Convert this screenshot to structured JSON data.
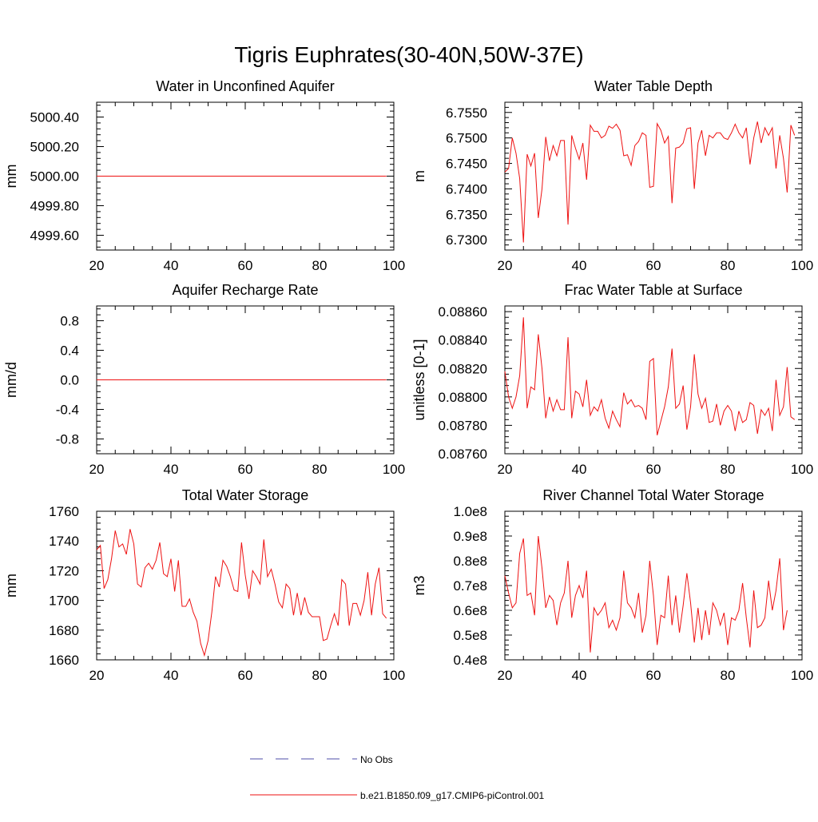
{
  "title": "Tigris Euphrates(30-40N,50W-37E)",
  "legend": {
    "entries": [
      {
        "label": "No Obs",
        "color": "#4c4ca8",
        "style": "dashed"
      },
      {
        "label": "b.e21.B1850.f09_g17.CMIP6-piControl.001",
        "color": "#ee1111",
        "style": "solid"
      }
    ]
  },
  "series_color": "#ee1111",
  "chart_data": [
    {
      "type": "line",
      "title": "Water in Unconfined Aquifer",
      "ylabel": "mm",
      "xlim": [
        20,
        100
      ],
      "ylim": [
        4999.5,
        5000.5
      ],
      "xticks": [
        20,
        40,
        60,
        80,
        100
      ],
      "xtick_labels": [
        "20",
        "40",
        "60",
        "80",
        "100"
      ],
      "yticks": [
        4999.6,
        4999.8,
        5000.0,
        5000.2,
        5000.4
      ],
      "ytick_labels": [
        "4999.60",
        "4999.80",
        "5000.00",
        "5000.20",
        "5000.40"
      ],
      "x_start": 20,
      "values": [
        5000,
        5000,
        5000,
        5000,
        5000,
        5000,
        5000,
        5000,
        5000,
        5000,
        5000,
        5000,
        5000,
        5000,
        5000,
        5000,
        5000,
        5000,
        5000,
        5000,
        5000,
        5000,
        5000,
        5000,
        5000,
        5000,
        5000,
        5000,
        5000,
        5000,
        5000,
        5000,
        5000,
        5000,
        5000,
        5000,
        5000,
        5000,
        5000,
        5000,
        5000,
        5000,
        5000,
        5000,
        5000,
        5000,
        5000,
        5000,
        5000,
        5000,
        5000,
        5000,
        5000,
        5000,
        5000,
        5000,
        5000,
        5000,
        5000,
        5000,
        5000,
        5000,
        5000,
        5000,
        5000,
        5000,
        5000,
        5000,
        5000,
        5000,
        5000,
        5000,
        5000,
        5000,
        5000,
        5000,
        5000,
        5000,
        5000
      ]
    },
    {
      "type": "line",
      "title": "Water Table Depth",
      "ylabel": "m",
      "xlim": [
        20,
        100
      ],
      "ylim": [
        6.728,
        6.757
      ],
      "xticks": [
        20,
        40,
        60,
        80,
        100
      ],
      "xtick_labels": [
        "20",
        "40",
        "60",
        "80",
        "100"
      ],
      "yticks": [
        6.73,
        6.735,
        6.74,
        6.745,
        6.75,
        6.755
      ],
      "ytick_labels": [
        "6.7300",
        "6.7350",
        "6.7400",
        "6.7450",
        "6.7500",
        "6.7550"
      ],
      "x_start": 20,
      "values": [
        6.7433,
        6.744,
        6.75,
        6.747,
        6.742,
        6.7295,
        6.7468,
        6.7445,
        6.747,
        6.7343,
        6.74,
        6.7502,
        6.7455,
        6.7485,
        6.7465,
        6.7495,
        6.7495,
        6.733,
        6.7505,
        6.748,
        6.7458,
        6.749,
        6.7418,
        6.7525,
        6.7513,
        6.7513,
        6.75,
        6.7505,
        6.7523,
        6.7519,
        6.7527,
        6.7515,
        6.7465,
        6.7467,
        6.7446,
        6.7485,
        6.7493,
        6.751,
        6.7505,
        6.7403,
        6.7405,
        6.7528,
        6.7515,
        6.749,
        6.7503,
        6.7372,
        6.748,
        6.7482,
        6.749,
        6.7518,
        6.752,
        6.74,
        6.749,
        6.7515,
        6.7465,
        6.7505,
        6.75,
        6.751,
        6.751,
        6.75,
        6.7497,
        6.751,
        6.7527,
        6.751,
        6.75,
        6.752,
        6.7448,
        6.75,
        6.7532,
        6.749,
        6.752,
        6.7505,
        6.752,
        6.744,
        6.7505,
        6.746,
        6.7393,
        6.7525,
        6.7505
      ]
    },
    {
      "type": "line",
      "title": "Aquifer Recharge Rate",
      "ylabel": "mm/d",
      "xlim": [
        20,
        100
      ],
      "ylim": [
        -1.0,
        1.0
      ],
      "xticks": [
        20,
        40,
        60,
        80,
        100
      ],
      "xtick_labels": [
        "20",
        "40",
        "60",
        "80",
        "100"
      ],
      "yticks": [
        -0.8,
        -0.4,
        0.0,
        0.4,
        0.8
      ],
      "ytick_labels": [
        "-0.8",
        "-0.4",
        "0.0",
        "0.4",
        "0.8"
      ],
      "x_start": 20,
      "values": [
        0,
        0,
        0,
        0,
        0,
        0,
        0,
        0,
        0,
        0,
        0,
        0,
        0,
        0,
        0,
        0,
        0,
        0,
        0,
        0,
        0,
        0,
        0,
        0,
        0,
        0,
        0,
        0,
        0,
        0,
        0,
        0,
        0,
        0,
        0,
        0,
        0,
        0,
        0,
        0,
        0,
        0,
        0,
        0,
        0,
        0,
        0,
        0,
        0,
        0,
        0,
        0,
        0,
        0,
        0,
        0,
        0,
        0,
        0,
        0,
        0,
        0,
        0,
        0,
        0,
        0,
        0,
        0,
        0,
        0,
        0,
        0,
        0,
        0,
        0,
        0,
        0,
        0,
        0
      ]
    },
    {
      "type": "line",
      "title": "Frac Water Table at Surface",
      "ylabel": "unitless [0-1]",
      "xlim": [
        20,
        100
      ],
      "ylim": [
        0.0876,
        0.08864
      ],
      "xticks": [
        20,
        40,
        60,
        80,
        100
      ],
      "xtick_labels": [
        "20",
        "40",
        "60",
        "80",
        "100"
      ],
      "yticks": [
        0.0876,
        0.0878,
        0.088,
        0.0882,
        0.0884,
        0.0886
      ],
      "ytick_labels": [
        "0.08760",
        "0.08780",
        "0.08800",
        "0.08820",
        "0.08840",
        "0.08860"
      ],
      "x_start": 20,
      "values": [
        0.08818,
        0.088,
        0.08792,
        0.088,
        0.08815,
        0.08856,
        0.08792,
        0.08807,
        0.08805,
        0.08844,
        0.0882,
        0.08785,
        0.088,
        0.0879,
        0.08798,
        0.08791,
        0.08791,
        0.08842,
        0.08785,
        0.08804,
        0.08802,
        0.08793,
        0.08812,
        0.08787,
        0.08793,
        0.0879,
        0.08798,
        0.08785,
        0.08778,
        0.0879,
        0.08784,
        0.08779,
        0.08803,
        0.08795,
        0.08798,
        0.08793,
        0.08794,
        0.08792,
        0.08784,
        0.08825,
        0.08827,
        0.08773,
        0.08783,
        0.08793,
        0.08807,
        0.08834,
        0.08792,
        0.08795,
        0.08808,
        0.08777,
        0.08793,
        0.0883,
        0.08802,
        0.08792,
        0.08799,
        0.08782,
        0.08783,
        0.08795,
        0.0878,
        0.0879,
        0.08794,
        0.0879,
        0.08776,
        0.0879,
        0.08782,
        0.08784,
        0.08796,
        0.08794,
        0.08774,
        0.08791,
        0.08787,
        0.08792,
        0.08776,
        0.08812,
        0.08787,
        0.08793,
        0.08821,
        0.08786,
        0.08784
      ]
    },
    {
      "type": "line",
      "title": "Total Water Storage",
      "ylabel": "mm",
      "xlim": [
        20,
        100
      ],
      "ylim": [
        1660,
        1760
      ],
      "xticks": [
        20,
        40,
        60,
        80,
        100
      ],
      "xtick_labels": [
        "20",
        "40",
        "60",
        "80",
        "100"
      ],
      "yticks": [
        1660,
        1680,
        1700,
        1720,
        1740,
        1760
      ],
      "ytick_labels": [
        "1660",
        "1680",
        "1700",
        "1720",
        "1740",
        "1760"
      ],
      "x_start": 20,
      "values": [
        1734,
        1737,
        1708,
        1714,
        1728,
        1747,
        1736,
        1738,
        1731,
        1748,
        1738,
        1711,
        1709,
        1722,
        1725,
        1721,
        1727,
        1739,
        1718,
        1716,
        1728,
        1706,
        1727,
        1696,
        1696,
        1701,
        1692,
        1686,
        1671,
        1663,
        1673,
        1692,
        1716,
        1709,
        1727,
        1723,
        1716,
        1707,
        1706,
        1739,
        1717,
        1701,
        1720,
        1716,
        1711,
        1741,
        1716,
        1721,
        1711,
        1699,
        1695,
        1711,
        1708,
        1690,
        1705,
        1690,
        1702,
        1692,
        1689,
        1689,
        1689,
        1673,
        1674,
        1683,
        1691,
        1683,
        1714,
        1711,
        1683,
        1698,
        1698,
        1690,
        1700,
        1719,
        1690,
        1711,
        1722,
        1691,
        1688
      ]
    },
    {
      "type": "line",
      "title": "River Channel Total Water Storage",
      "ylabel": "m3",
      "xlim": [
        20,
        100
      ],
      "ylim": [
        40000000,
        100000000
      ],
      "xticks": [
        20,
        40,
        60,
        80,
        100
      ],
      "xtick_labels": [
        "20",
        "40",
        "60",
        "80",
        "100"
      ],
      "yticks": [
        40000000,
        50000000,
        60000000,
        70000000,
        80000000,
        90000000,
        100000000
      ],
      "ytick_labels": [
        "0.4e8",
        "0.5e8",
        "0.6e8",
        "0.7e8",
        "0.8e8",
        "0.9e8",
        "1.0e8"
      ],
      "x_start": 20,
      "values": [
        74000000,
        67000000,
        61000000,
        63000000,
        83000000,
        89000000,
        66000000,
        67000000,
        58000000,
        90000000,
        77000000,
        61000000,
        66000000,
        64000000,
        54000000,
        63000000,
        67000000,
        80000000,
        57000000,
        66000000,
        70000000,
        65000000,
        76000000,
        43000000,
        61000000,
        58000000,
        60000000,
        63000000,
        53000000,
        56000000,
        52000000,
        57000000,
        76000000,
        63000000,
        61000000,
        57000000,
        67000000,
        51000000,
        58000000,
        80000000,
        66000000,
        46000000,
        58000000,
        57000000,
        74000000,
        54000000,
        66000000,
        51000000,
        62000000,
        75000000,
        63000000,
        47000000,
        61000000,
        48000000,
        60000000,
        50000000,
        63000000,
        60000000,
        54000000,
        59000000,
        46000000,
        57000000,
        56000000,
        60000000,
        71000000,
        57000000,
        45000000,
        68000000,
        53000000,
        54000000,
        57000000,
        72000000,
        60000000,
        68000000,
        81000000,
        52000000,
        60000000
      ]
    }
  ]
}
